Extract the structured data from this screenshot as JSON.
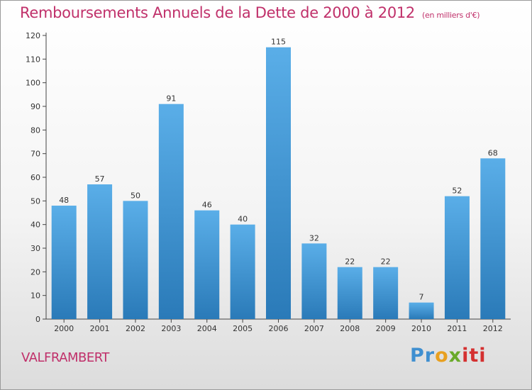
{
  "title": "Remboursements Annuels de la Dette de 2000 à 2012",
  "unit": "(en milliers d'€)",
  "place": "VALFRAMBERT",
  "logo": {
    "part1": "Pr",
    "part2": "o",
    "part3": "x",
    "part4": "iti"
  },
  "colors": {
    "bar_top": "#5aaee8",
    "bar_bottom": "#2a7ab8",
    "title": "#c0306a",
    "axis": "#444444"
  },
  "chart_data": {
    "type": "bar",
    "categories": [
      "2000",
      "2001",
      "2002",
      "2003",
      "2004",
      "2005",
      "2006",
      "2007",
      "2008",
      "2009",
      "2010",
      "2011",
      "2012"
    ],
    "values": [
      48,
      57,
      50,
      91,
      46,
      40,
      115,
      32,
      22,
      22,
      7,
      52,
      68
    ],
    "ylim": [
      0,
      120
    ],
    "yticks": [
      0,
      10,
      20,
      30,
      40,
      50,
      60,
      70,
      80,
      90,
      100,
      110,
      120
    ],
    "grid": false,
    "legend": "none"
  }
}
